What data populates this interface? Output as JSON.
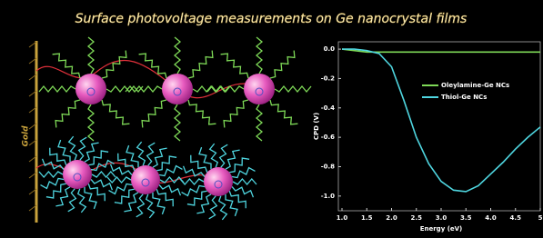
{
  "title": "Surface photovoltage measurements on Ge nanocrystal films",
  "electrode_label": "Gold",
  "chart_data": {
    "type": "line",
    "x_label": "Energy (eV)",
    "y_label": "CPD (V)",
    "x": [
      1.0,
      1.25,
      1.5,
      1.75,
      2.0,
      2.25,
      2.5,
      2.75,
      3.0,
      3.25,
      3.5,
      3.75,
      4.0,
      4.25,
      4.5,
      4.75,
      5.0
    ],
    "series": [
      {
        "name": "Oleylamine-Ge NCs",
        "color": "#7ed957",
        "values": [
          0,
          -0.01,
          -0.02,
          -0.02,
          -0.02,
          -0.02,
          -0.02,
          -0.02,
          -0.02,
          -0.02,
          -0.02,
          -0.02,
          -0.02,
          -0.02,
          -0.02,
          -0.02,
          -0.02
        ]
      },
      {
        "name": "Thiol-Ge NCs",
        "color": "#4fd6e0",
        "values": [
          0,
          0,
          -0.01,
          -0.03,
          -0.12,
          -0.35,
          -0.6,
          -0.78,
          -0.9,
          -0.96,
          -0.97,
          -0.93,
          -0.85,
          -0.77,
          -0.68,
          -0.6,
          -0.53
        ]
      }
    ],
    "xlim": [
      1.0,
      5.0
    ],
    "ylim": [
      -1.1,
      0.05
    ],
    "xticks": [
      {
        "value": 1.0,
        "label": "1.0"
      },
      1.5,
      {
        "value": 2.0,
        "label": "2.0"
      },
      2.5,
      {
        "value": 3.0,
        "label": "3.0"
      },
      3.5,
      {
        "value": 4.0,
        "label": "4.0"
      },
      4.5,
      5
    ],
    "yticks": [
      {
        "value": 0,
        "label": "0.0"
      },
      -0.2,
      -0.4,
      -0.6,
      -0.8,
      {
        "value": -1.0,
        "label": "-1.0"
      }
    ],
    "legend": "right"
  }
}
